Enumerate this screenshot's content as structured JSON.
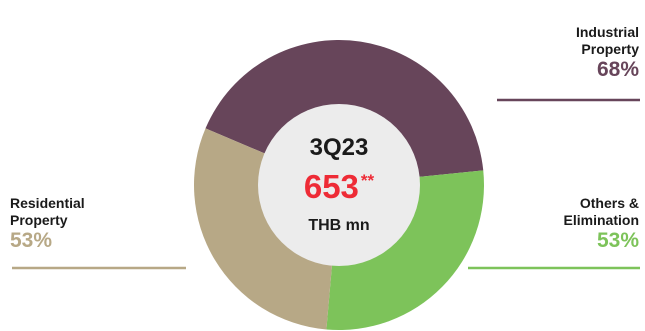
{
  "chart_data": {
    "type": "pie",
    "categories": [
      "Industrial Property",
      "Others & Elimination",
      "Residential Property"
    ],
    "series": [
      {
        "values": [
          68,
          53,
          53
        ],
        "colors": [
          "#67455a",
          "#7dc35a",
          "#b7a886"
        ]
      }
    ],
    "slice_shares": [
      0.42,
      0.28,
      0.3
    ],
    "center": {
      "period": "3Q23",
      "value": "653",
      "footnote_mark": "**",
      "unit": "THB mn"
    },
    "inner_color": "#ececec",
    "labels": [
      {
        "name": "Industrial\nProperty",
        "percent": "68%",
        "color": "#67455a"
      },
      {
        "name": "Others &\nElimination",
        "percent": "53%",
        "color": "#7dc35a"
      },
      {
        "name": "Residential\nProperty",
        "percent": "53%",
        "color": "#b7a886"
      }
    ]
  }
}
